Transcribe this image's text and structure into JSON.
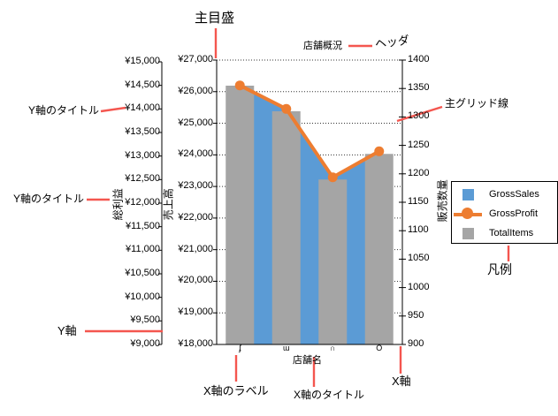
{
  "chart": {
    "header": "店舗概況",
    "x_axis": {
      "title": "店舗名",
      "tick_labels": [
        "ʄ",
        "ɯ",
        "∩",
        "O"
      ]
    },
    "y_axis_profit": {
      "title": "総利益",
      "tick_labels": [
        "¥15,000",
        "¥14,500",
        "¥14,000",
        "¥13,500",
        "¥13,000",
        "¥12,500",
        "¥12,000",
        "¥11,500",
        "¥11,000",
        "¥10,500",
        "¥10,000",
        "¥9,500",
        "¥9,000"
      ]
    },
    "y_axis_sales": {
      "title": "売上高",
      "tick_labels": [
        "¥27,000",
        "¥26,000",
        "¥25,000",
        "¥24,000",
        "¥23,000",
        "¥22,000",
        "¥21,000",
        "¥20,000",
        "¥19,000",
        "¥18,000"
      ]
    },
    "y_axis_items": {
      "title": "販売数量",
      "tick_labels": [
        "1400",
        "1350",
        "1300",
        "1250",
        "1200",
        "1150",
        "1100",
        "1050",
        "1000",
        "950",
        "900"
      ]
    }
  },
  "chart_data": {
    "type": "combo",
    "title": "店舗概況",
    "categories": [
      "ʄ",
      "ɯ",
      "∩",
      "O"
    ],
    "series": [
      {
        "name": "GrossSales",
        "type": "area-bar",
        "color": "#5B9BD5",
        "axis": "売上高",
        "values": [
          26200,
          25400,
          23300,
          24100
        ]
      },
      {
        "name": "GrossProfit",
        "type": "line",
        "color": "#ED7D31",
        "axis": "総利益",
        "values": [
          14500,
          14000,
          12550,
          13100
        ]
      },
      {
        "name": "TotalItems",
        "type": "bar",
        "color": "#A5A5A5",
        "axis": "販売数量",
        "values": [
          1355,
          1310,
          1190,
          1235
        ]
      }
    ],
    "axes": {
      "y_profit": {
        "label": "総利益",
        "min": 9000,
        "max": 15000,
        "step": 500,
        "format": "¥"
      },
      "y_sales": {
        "label": "売上高",
        "min": 18000,
        "max": 27000,
        "step": 1000,
        "format": "¥"
      },
      "y_items": {
        "label": "販売数量",
        "min": 900,
        "max": 1400,
        "step": 50
      },
      "x": {
        "label": "店舗名"
      }
    },
    "grid": "major horizontal dotted",
    "legend_position": "right"
  },
  "annotations": {
    "major_tick": "主目盛",
    "header": "ヘッダ",
    "major_gridline": "主グリッド線",
    "y_axis_title_upper": "Y軸のタイトル",
    "y_axis_title_lower": "Y軸のタイトル",
    "y_axis": "Y軸",
    "x_axis_label": "X軸のラベル",
    "x_axis_title": "X軸のタイトル",
    "x_axis": "X軸",
    "legend": "凡例"
  },
  "colors": {
    "annotation_red": "#F4564F",
    "bar_blue": "#5B9BD5",
    "bar_gray": "#A5A5A5",
    "line_orange": "#ED7D31",
    "grid": "#333333"
  }
}
